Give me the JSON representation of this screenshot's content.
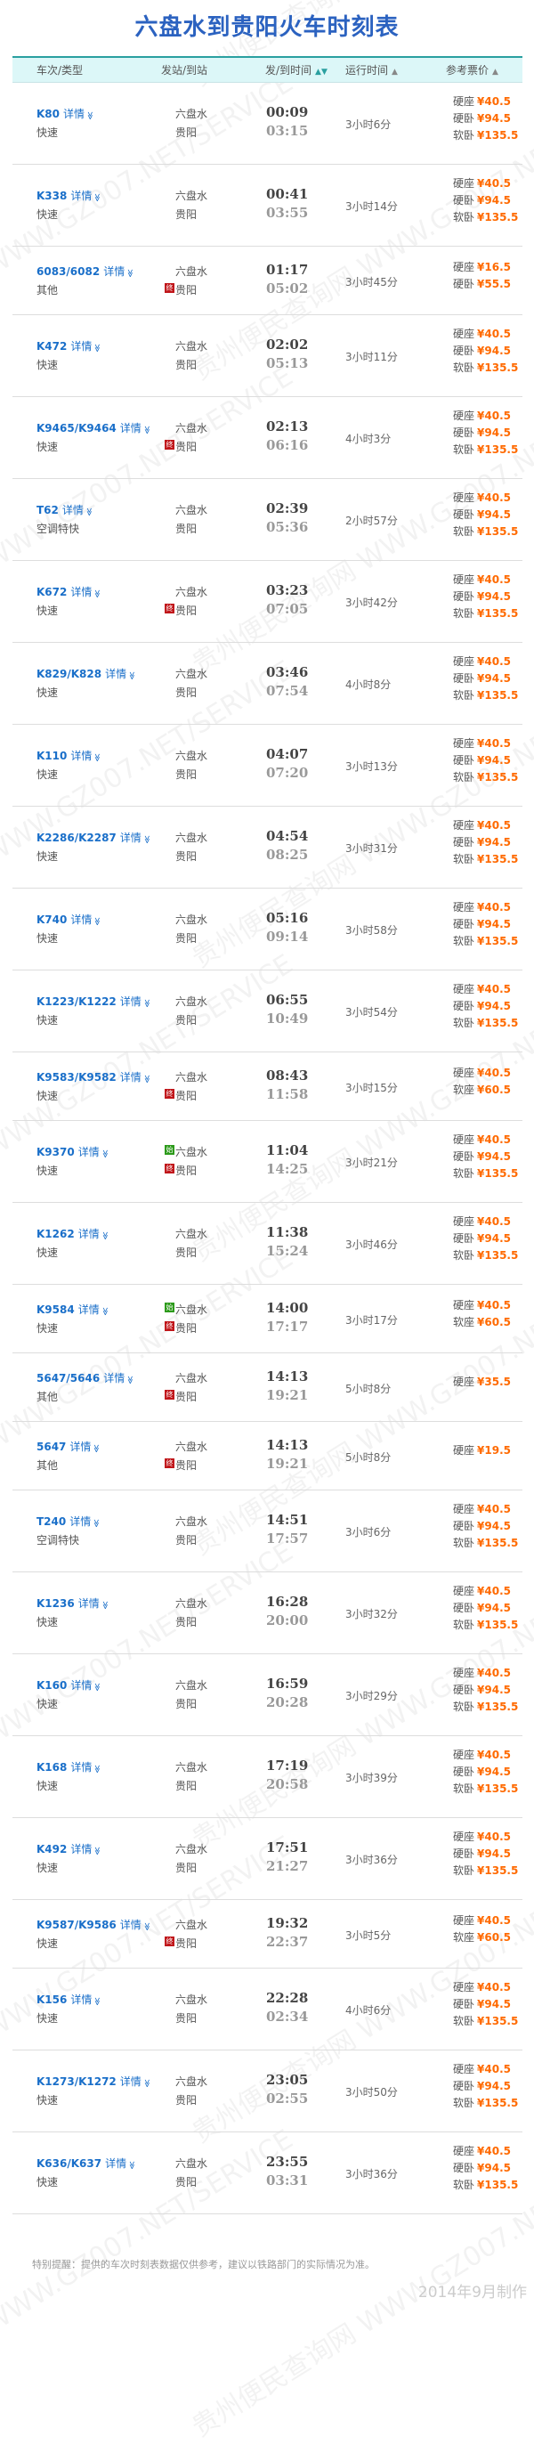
{
  "title": "六盘水到贵阳火车时刻表",
  "watermark": "贵州便民查询网 WWW.GZ007.NET/SERVICE",
  "colors": {
    "title": "#2b62c0",
    "train_link": "#1a6fc9",
    "price": "#ff6a00",
    "header_bg": "#dcf7f8",
    "start_badge": "#2c9a1a",
    "end_badge": "#c0161a"
  },
  "header": {
    "train": "车次/类型",
    "station": "发站/到站",
    "time": "发/到时间",
    "duration": "运行时间",
    "price": "参考票价",
    "sort_icon": "▲▼",
    "sort_icon_up": "▲"
  },
  "detail_label": "详情",
  "chevron": "≫",
  "badges": {
    "start": "始",
    "end": "终"
  },
  "rows": [
    {
      "no": "K80",
      "type": "快速",
      "from": "六盘水",
      "to": "贵阳",
      "dep": "00:09",
      "arr": "03:15",
      "dur": "3小时6分",
      "prices": [
        [
          "硬座",
          "¥40.5"
        ],
        [
          "硬卧",
          "¥94.5"
        ],
        [
          "软卧",
          "¥135.5"
        ]
      ]
    },
    {
      "no": "K338",
      "type": "快速",
      "from": "六盘水",
      "to": "贵阳",
      "dep": "00:41",
      "arr": "03:55",
      "dur": "3小时14分",
      "prices": [
        [
          "硬座",
          "¥40.5"
        ],
        [
          "硬卧",
          "¥94.5"
        ],
        [
          "软卧",
          "¥135.5"
        ]
      ]
    },
    {
      "no": "6083/6082",
      "type": "其他",
      "from": "六盘水",
      "to": "贵阳",
      "to_badge": "end",
      "dep": "01:17",
      "arr": "05:02",
      "dur": "3小时45分",
      "prices": [
        [
          "硬座",
          "¥16.5"
        ],
        [
          "硬卧",
          "¥55.5"
        ]
      ]
    },
    {
      "no": "K472",
      "type": "快速",
      "from": "六盘水",
      "to": "贵阳",
      "dep": "02:02",
      "arr": "05:13",
      "dur": "3小时11分",
      "prices": [
        [
          "硬座",
          "¥40.5"
        ],
        [
          "硬卧",
          "¥94.5"
        ],
        [
          "软卧",
          "¥135.5"
        ]
      ]
    },
    {
      "no": "K9465/K9464",
      "type": "快速",
      "from": "六盘水",
      "to": "贵阳",
      "to_badge": "end",
      "dep": "02:13",
      "arr": "06:16",
      "dur": "4小时3分",
      "prices": [
        [
          "硬座",
          "¥40.5"
        ],
        [
          "硬卧",
          "¥94.5"
        ],
        [
          "软卧",
          "¥135.5"
        ]
      ]
    },
    {
      "no": "T62",
      "type": "空调特快",
      "from": "六盘水",
      "to": "贵阳",
      "dep": "02:39",
      "arr": "05:36",
      "dur": "2小时57分",
      "prices": [
        [
          "硬座",
          "¥40.5"
        ],
        [
          "硬卧",
          "¥94.5"
        ],
        [
          "软卧",
          "¥135.5"
        ]
      ]
    },
    {
      "no": "K672",
      "type": "快速",
      "from": "六盘水",
      "to": "贵阳",
      "to_badge": "end",
      "dep": "03:23",
      "arr": "07:05",
      "dur": "3小时42分",
      "prices": [
        [
          "硬座",
          "¥40.5"
        ],
        [
          "硬卧",
          "¥94.5"
        ],
        [
          "软卧",
          "¥135.5"
        ]
      ]
    },
    {
      "no": "K829/K828",
      "type": "快速",
      "from": "六盘水",
      "to": "贵阳",
      "dep": "03:46",
      "arr": "07:54",
      "dur": "4小时8分",
      "prices": [
        [
          "硬座",
          "¥40.5"
        ],
        [
          "硬卧",
          "¥94.5"
        ],
        [
          "软卧",
          "¥135.5"
        ]
      ]
    },
    {
      "no": "K110",
      "type": "快速",
      "from": "六盘水",
      "to": "贵阳",
      "dep": "04:07",
      "arr": "07:20",
      "dur": "3小时13分",
      "prices": [
        [
          "硬座",
          "¥40.5"
        ],
        [
          "硬卧",
          "¥94.5"
        ],
        [
          "软卧",
          "¥135.5"
        ]
      ]
    },
    {
      "no": "K2286/K2287",
      "type": "快速",
      "from": "六盘水",
      "to": "贵阳",
      "dep": "04:54",
      "arr": "08:25",
      "dur": "3小时31分",
      "prices": [
        [
          "硬座",
          "¥40.5"
        ],
        [
          "硬卧",
          "¥94.5"
        ],
        [
          "软卧",
          "¥135.5"
        ]
      ]
    },
    {
      "no": "K740",
      "type": "快速",
      "from": "六盘水",
      "to": "贵阳",
      "dep": "05:16",
      "arr": "09:14",
      "dur": "3小时58分",
      "prices": [
        [
          "硬座",
          "¥40.5"
        ],
        [
          "硬卧",
          "¥94.5"
        ],
        [
          "软卧",
          "¥135.5"
        ]
      ]
    },
    {
      "no": "K1223/K1222",
      "type": "快速",
      "from": "六盘水",
      "to": "贵阳",
      "dep": "06:55",
      "arr": "10:49",
      "dur": "3小时54分",
      "prices": [
        [
          "硬座",
          "¥40.5"
        ],
        [
          "硬卧",
          "¥94.5"
        ],
        [
          "软卧",
          "¥135.5"
        ]
      ]
    },
    {
      "no": "K9583/K9582",
      "type": "快速",
      "from": "六盘水",
      "to": "贵阳",
      "to_badge": "end",
      "dep": "08:43",
      "arr": "11:58",
      "dur": "3小时15分",
      "prices": [
        [
          "硬座",
          "¥40.5"
        ],
        [
          "软座",
          "¥60.5"
        ]
      ]
    },
    {
      "no": "K9370",
      "type": "快速",
      "from": "六盘水",
      "from_badge": "start",
      "to": "贵阳",
      "to_badge": "end",
      "dep": "11:04",
      "arr": "14:25",
      "dur": "3小时21分",
      "prices": [
        [
          "硬座",
          "¥40.5"
        ],
        [
          "硬卧",
          "¥94.5"
        ],
        [
          "软卧",
          "¥135.5"
        ]
      ]
    },
    {
      "no": "K1262",
      "type": "快速",
      "from": "六盘水",
      "to": "贵阳",
      "dep": "11:38",
      "arr": "15:24",
      "dur": "3小时46分",
      "prices": [
        [
          "硬座",
          "¥40.5"
        ],
        [
          "硬卧",
          "¥94.5"
        ],
        [
          "软卧",
          "¥135.5"
        ]
      ]
    },
    {
      "no": "K9584",
      "type": "快速",
      "from": "六盘水",
      "from_badge": "start",
      "to": "贵阳",
      "to_badge": "end",
      "dep": "14:00",
      "arr": "17:17",
      "dur": "3小时17分",
      "prices": [
        [
          "硬座",
          "¥40.5"
        ],
        [
          "软座",
          "¥60.5"
        ]
      ]
    },
    {
      "no": "5647/5646",
      "type": "其他",
      "from": "六盘水",
      "to": "贵阳",
      "to_badge": "end",
      "dep": "14:13",
      "arr": "19:21",
      "dur": "5小时8分",
      "prices": [
        [
          "硬座",
          "¥35.5"
        ]
      ]
    },
    {
      "no": "5647",
      "type": "其他",
      "from": "六盘水",
      "to": "贵阳",
      "to_badge": "end",
      "dep": "14:13",
      "arr": "19:21",
      "dur": "5小时8分",
      "prices": [
        [
          "硬座",
          "¥19.5"
        ]
      ]
    },
    {
      "no": "T240",
      "type": "空调特快",
      "from": "六盘水",
      "to": "贵阳",
      "dep": "14:51",
      "arr": "17:57",
      "dur": "3小时6分",
      "prices": [
        [
          "硬座",
          "¥40.5"
        ],
        [
          "硬卧",
          "¥94.5"
        ],
        [
          "软卧",
          "¥135.5"
        ]
      ]
    },
    {
      "no": "K1236",
      "type": "快速",
      "from": "六盘水",
      "to": "贵阳",
      "dep": "16:28",
      "arr": "20:00",
      "dur": "3小时32分",
      "prices": [
        [
          "硬座",
          "¥40.5"
        ],
        [
          "硬卧",
          "¥94.5"
        ],
        [
          "软卧",
          "¥135.5"
        ]
      ]
    },
    {
      "no": "K160",
      "type": "快速",
      "from": "六盘水",
      "to": "贵阳",
      "dep": "16:59",
      "arr": "20:28",
      "dur": "3小时29分",
      "prices": [
        [
          "硬座",
          "¥40.5"
        ],
        [
          "硬卧",
          "¥94.5"
        ],
        [
          "软卧",
          "¥135.5"
        ]
      ]
    },
    {
      "no": "K168",
      "type": "快速",
      "from": "六盘水",
      "to": "贵阳",
      "dep": "17:19",
      "arr": "20:58",
      "dur": "3小时39分",
      "prices": [
        [
          "硬座",
          "¥40.5"
        ],
        [
          "硬卧",
          "¥94.5"
        ],
        [
          "软卧",
          "¥135.5"
        ]
      ]
    },
    {
      "no": "K492",
      "type": "快速",
      "from": "六盘水",
      "to": "贵阳",
      "dep": "17:51",
      "arr": "21:27",
      "dur": "3小时36分",
      "prices": [
        [
          "硬座",
          "¥40.5"
        ],
        [
          "硬卧",
          "¥94.5"
        ],
        [
          "软卧",
          "¥135.5"
        ]
      ]
    },
    {
      "no": "K9587/K9586",
      "type": "快速",
      "from": "六盘水",
      "to": "贵阳",
      "to_badge": "end",
      "dep": "19:32",
      "arr": "22:37",
      "dur": "3小时5分",
      "prices": [
        [
          "硬座",
          "¥40.5"
        ],
        [
          "软座",
          "¥60.5"
        ]
      ]
    },
    {
      "no": "K156",
      "type": "快速",
      "from": "六盘水",
      "to": "贵阳",
      "dep": "22:28",
      "arr": "02:34",
      "dur": "4小时6分",
      "prices": [
        [
          "硬座",
          "¥40.5"
        ],
        [
          "硬卧",
          "¥94.5"
        ],
        [
          "软卧",
          "¥135.5"
        ]
      ]
    },
    {
      "no": "K1273/K1272",
      "type": "快速",
      "from": "六盘水",
      "to": "贵阳",
      "dep": "23:05",
      "arr": "02:55",
      "dur": "3小时50分",
      "prices": [
        [
          "硬座",
          "¥40.5"
        ],
        [
          "硬卧",
          "¥94.5"
        ],
        [
          "软卧",
          "¥135.5"
        ]
      ]
    },
    {
      "no": "K636/K637",
      "type": "快速",
      "from": "六盘水",
      "to": "贵阳",
      "dep": "23:55",
      "arr": "03:31",
      "dur": "3小时36分",
      "prices": [
        [
          "硬座",
          "¥40.5"
        ],
        [
          "硬卧",
          "¥94.5"
        ],
        [
          "软卧",
          "¥135.5"
        ]
      ]
    }
  ],
  "footer": {
    "note": "特别提醒：提供的车次时刻表数据仅供参考，建议以铁路部门的实际情况为准。",
    "made": "2014年9月制作"
  }
}
